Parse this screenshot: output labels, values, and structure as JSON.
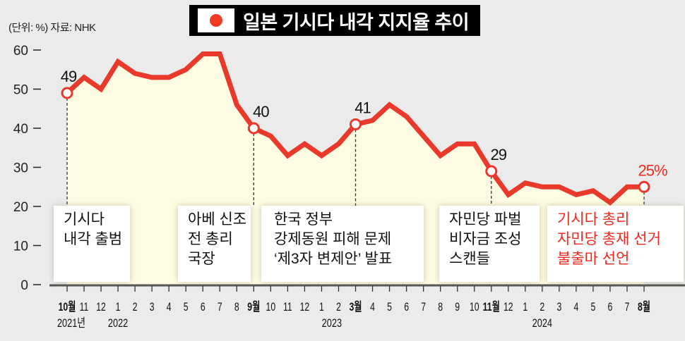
{
  "header": {
    "title": "일본 기시다 내각 지지율 추이",
    "unit_source": "(단위: %)  자료: NHK",
    "flag_icon": "japan-flag-icon"
  },
  "colors": {
    "line": "#e8392a",
    "fill": "#fdfbe2",
    "background": "#ebebeb",
    "highlight": "#ee2a1f"
  },
  "chart_data": {
    "type": "area",
    "title": "일본 기시다 내각 지지율 추이",
    "ylabel": "(단위: %)",
    "source": "자료: NHK",
    "ylim": [
      0,
      60
    ],
    "yticks": [
      0,
      10,
      20,
      30,
      40,
      50,
      60
    ],
    "grid": false,
    "x": [
      "2021-10",
      "2021-11",
      "2021-12",
      "2022-01",
      "2022-02",
      "2022-03",
      "2022-04",
      "2022-05",
      "2022-06",
      "2022-07",
      "2022-08",
      "2022-09",
      "2022-10",
      "2022-11",
      "2022-12",
      "2023-01",
      "2023-02",
      "2023-03",
      "2023-04",
      "2023-05",
      "2023-06",
      "2023-07",
      "2023-08",
      "2023-09",
      "2023-10",
      "2023-11",
      "2023-12",
      "2024-01",
      "2024-02",
      "2024-03",
      "2024-04",
      "2024-05",
      "2024-06",
      "2024-07",
      "2024-08"
    ],
    "values": [
      49,
      53,
      50,
      57,
      54,
      53,
      53,
      55,
      59,
      59,
      46,
      40,
      38,
      33,
      36,
      33,
      36,
      41,
      42,
      46,
      43,
      38,
      33,
      36,
      36,
      29,
      23,
      26,
      25,
      25,
      23,
      24,
      21,
      25,
      25
    ],
    "tick_labels": [
      "10월",
      "11",
      "12",
      "1",
      "2",
      "3",
      "4",
      "5",
      "6",
      "7",
      "8",
      "9월",
      "10",
      "11",
      "12",
      "1",
      "2",
      "3월",
      "4",
      "5",
      "6",
      "7",
      "8",
      "9",
      "10",
      "11월",
      "12",
      "1",
      "2",
      "3",
      "4",
      "5",
      "6",
      "7",
      "8월"
    ],
    "year_labels": [
      "2021년",
      "2022",
      "2023",
      "2024"
    ],
    "highlights": [
      {
        "index": 0,
        "label": "49",
        "note": [
          "기시다",
          "내각 출범"
        ]
      },
      {
        "index": 11,
        "label": "40",
        "note": [
          "아베 신조",
          "전 총리",
          "국장"
        ]
      },
      {
        "index": 17,
        "label": "41",
        "note": [
          "한국 정부",
          "강제동원 피해 문제",
          "‘제3자 변제안’ 발표"
        ]
      },
      {
        "index": 25,
        "label": "29",
        "note": [
          "자민당 파벌",
          "비자금 조성",
          "스캔들"
        ]
      },
      {
        "index": 34,
        "label": "25%",
        "note": [
          "기시다 총리",
          "자민당 총재 선거",
          "불출마 선언"
        ]
      }
    ]
  }
}
